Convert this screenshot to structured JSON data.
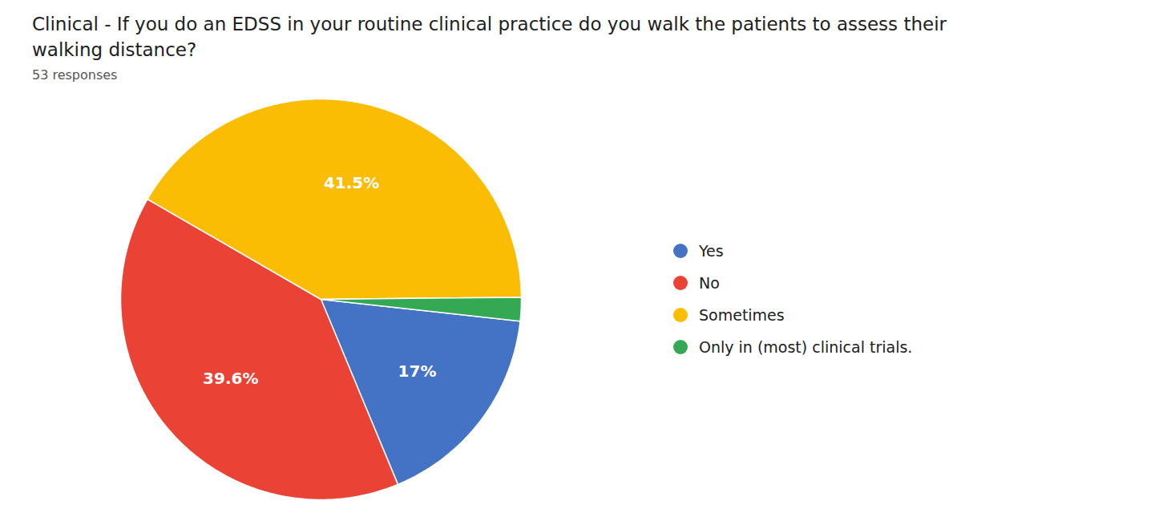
{
  "chart_data": {
    "type": "pie",
    "title": "Clinical - If you do an EDSS in your routine clinical practice do you walk the patients to assess their\nwalking distance?",
    "subtitle": "53 responses",
    "categories": [
      "Yes",
      "No",
      "Sometimes",
      "Only in (most) clinical trials."
    ],
    "values": [
      17.0,
      39.6,
      41.5,
      1.9
    ],
    "colors": [
      "#4472C4",
      "#EA4335",
      "#FBBC04",
      "#34A853"
    ],
    "data_labels": true,
    "value_labels": [
      "17%",
      "39.6%",
      "41.5%",
      null
    ],
    "legend": "right"
  }
}
